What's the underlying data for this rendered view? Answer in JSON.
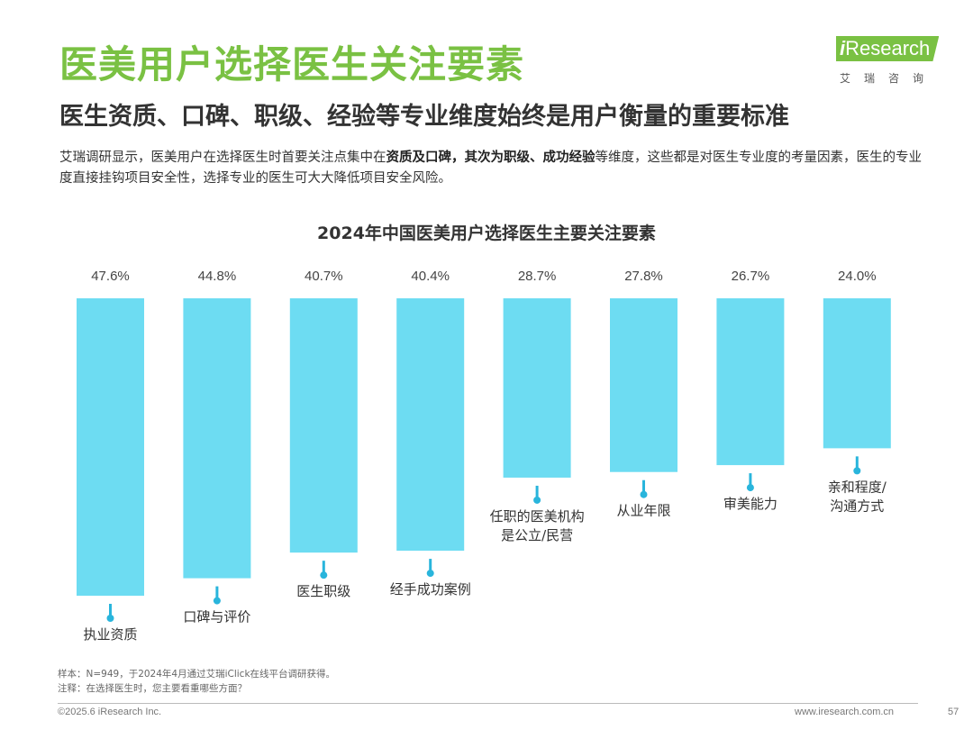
{
  "header": {
    "title": "医美用户选择医生关注要素",
    "subtitle": "医生资质、口碑、职级、经验等专业维度始终是用户衡量的重要标准"
  },
  "logo": {
    "brand_prefix": "i",
    "brand_main": "Research",
    "brand_cn": "艾瑞咨询"
  },
  "description": {
    "part1": "艾瑞调研显示，医美用户在选择医生时首要关注点集中在",
    "bold1": "资质及口碑，其次为职级、成功经验",
    "part2": "等维度，这些都是对医生专业度的考量因素，医生的专业度直接挂钩项目安全性，选择专业的医生可大大降低项目安全风险。"
  },
  "chart_data": {
    "type": "bar",
    "title": "2024年中国医美用户选择医生主要关注要素",
    "categories": [
      "执业资质",
      "口碑与评价",
      "医生职级",
      "经手成功案例",
      "任职的医美机构\n是公立/民营",
      "从业年限",
      "审美能力",
      "亲和程度/\n沟通方式"
    ],
    "values": [
      47.6,
      44.8,
      40.7,
      40.4,
      28.7,
      27.8,
      26.7,
      24.0
    ],
    "value_labels": [
      "47.6%",
      "44.8%",
      "40.7%",
      "40.4%",
      "28.7%",
      "27.8%",
      "26.7%",
      "24.0%"
    ],
    "orientation": "bars hang downward from a common top baseline",
    "ylim": [
      0,
      50
    ],
    "bar_color": "#6ddcf2",
    "marker_color": "#29b5dc"
  },
  "notes": {
    "sample": "样本：N=949，于2024年4月通过艾瑞iClick在线平台调研获得。",
    "annotation": "注释：在选择医生时，您主要看重哪些方面？"
  },
  "footer": {
    "copyright": "©2025.6 iResearch Inc.",
    "website": "www.iresearch.com.cn",
    "page": "57"
  }
}
